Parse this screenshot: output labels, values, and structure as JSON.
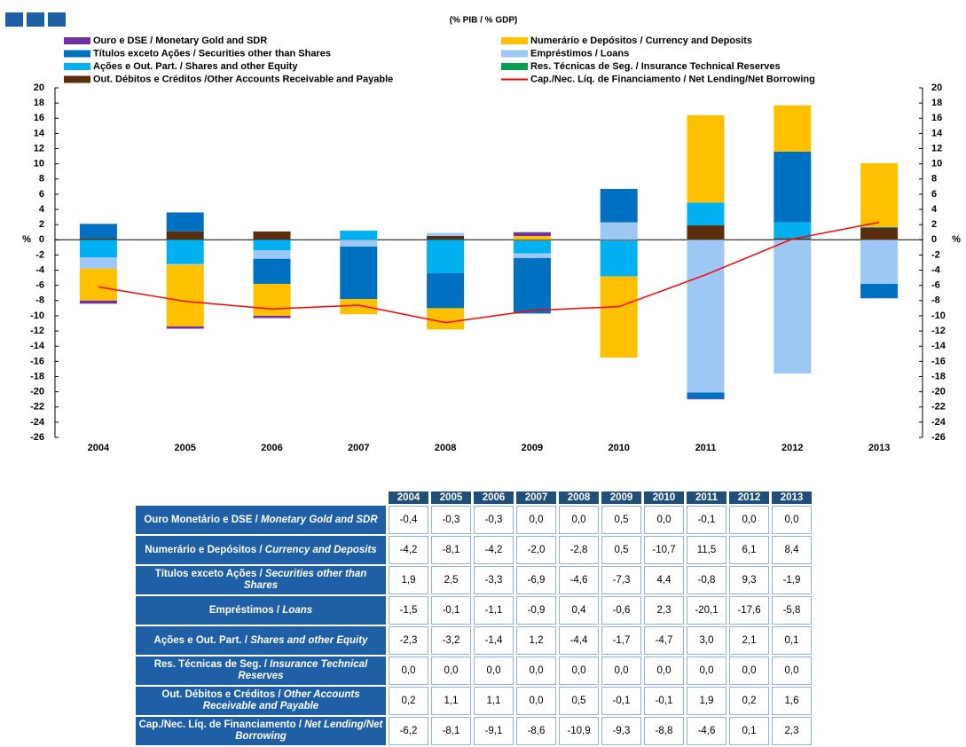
{
  "chart_data": {
    "type": "bar",
    "subtitle": "(% PIB / % GDP)",
    "y_label": "%",
    "categories": [
      "2004",
      "2005",
      "2006",
      "2007",
      "2008",
      "2009",
      "2010",
      "2011",
      "2012",
      "2013"
    ],
    "ylim": [
      -26,
      20
    ],
    "yticks": [
      -26,
      -24,
      -22,
      -20,
      -18,
      -16,
      -14,
      -12,
      -10,
      -8,
      -6,
      -4,
      -2,
      0,
      2,
      4,
      6,
      8,
      10,
      12,
      14,
      16,
      18,
      20
    ],
    "stacked": true,
    "series": [
      {
        "name": "Ouro e DSE / Monetary Gold and SDR",
        "color": "#7030a0",
        "values": [
          -0.4,
          -0.3,
          -0.3,
          0.0,
          0.0,
          0.5,
          0.0,
          -0.1,
          0.0,
          0.0
        ]
      },
      {
        "name": "Numerário e Depósitos / Currency and Deposits",
        "color": "#ffc000",
        "values": [
          -4.2,
          -8.1,
          -4.2,
          -2.0,
          -2.8,
          0.5,
          -10.7,
          11.5,
          6.1,
          8.4
        ]
      },
      {
        "name": "Títulos exceto Ações / Securities other than Shares",
        "color": "#0070c0",
        "values": [
          1.9,
          2.5,
          -3.3,
          -6.9,
          -4.6,
          -7.3,
          4.4,
          -0.8,
          9.3,
          -1.9
        ]
      },
      {
        "name": "Empréstimos / Loans",
        "color": "#9dc8f5",
        "values": [
          -1.5,
          -0.1,
          -1.1,
          -0.9,
          0.4,
          -0.6,
          2.3,
          -20.1,
          -17.6,
          -5.8
        ]
      },
      {
        "name": "Ações e Out. Part. / Shares and other Equity",
        "color": "#00b0f0",
        "values": [
          -2.3,
          -3.2,
          -1.4,
          1.2,
          -4.4,
          -1.7,
          -4.7,
          3.0,
          2.1,
          0.1
        ]
      },
      {
        "name": "Res. Técnicas de Seg. / Insurance Technical Reserves",
        "color": "#00a050",
        "values": [
          0.0,
          0.0,
          0.0,
          0.0,
          0.0,
          0.0,
          0.0,
          0.0,
          0.0,
          0.0
        ]
      },
      {
        "name": "Out. Débitos e Créditos /Other Accounts Receivable and Payable",
        "color": "#5a2d0c",
        "values": [
          0.2,
          1.1,
          1.1,
          0.0,
          0.5,
          -0.1,
          -0.1,
          1.9,
          0.2,
          1.6
        ]
      },
      {
        "name": "Cap./Nec. Líq. de Financiamento / Net Lending/Net Borrowing",
        "type": "line",
        "color": "#ff0000",
        "values": [
          -6.2,
          -8.1,
          -9.1,
          -8.6,
          -10.9,
          -9.3,
          -8.8,
          -4.6,
          0.1,
          2.3
        ]
      }
    ]
  },
  "table": {
    "header": [
      "2004",
      "2005",
      "2006",
      "2007",
      "2008",
      "2009",
      "2010",
      "2011",
      "2012",
      "2013"
    ],
    "rows": [
      {
        "label": "Ouro Monetário e DSE /",
        "label_en": "Monetary Gold and SDR",
        "cells": [
          "-0,4",
          "-0,3",
          "-0,3",
          "0,0",
          "0,0",
          "0,5",
          "0,0",
          "-0,1",
          "0,0",
          "0,0"
        ]
      },
      {
        "label": "Numerário e Depósitos /",
        "label_en": "Currency and Deposits",
        "cells": [
          "-4,2",
          "-8,1",
          "-4,2",
          "-2,0",
          "-2,8",
          "0,5",
          "-10,7",
          "11,5",
          "6,1",
          "8,4"
        ]
      },
      {
        "label": "Títulos exceto Ações /",
        "label_en": "Securities other than Shares",
        "cells": [
          "1,9",
          "2,5",
          "-3,3",
          "-6,9",
          "-4,6",
          "-7,3",
          "4,4",
          "-0,8",
          "9,3",
          "-1,9"
        ]
      },
      {
        "label": "Empréstimos /",
        "label_en": "Loans",
        "cells": [
          "-1,5",
          "-0,1",
          "-1,1",
          "-0,9",
          "0,4",
          "-0,6",
          "2,3",
          "-20,1",
          "-17,6",
          "-5,8"
        ]
      },
      {
        "label": "Ações e Out. Part. /",
        "label_en": "Shares and other Equity",
        "cells": [
          "-2,3",
          "-3,2",
          "-1,4",
          "1,2",
          "-4,4",
          "-1,7",
          "-4,7",
          "3,0",
          "2,1",
          "0,1"
        ]
      },
      {
        "label": "Res. Técnicas de Seg. /",
        "label_en": "Insurance Technical Reserves",
        "cells": [
          "0,0",
          "0,0",
          "0,0",
          "0,0",
          "0,0",
          "0,0",
          "0,0",
          "0,0",
          "0,0",
          "0,0"
        ]
      },
      {
        "label": "Out. Débitos e Créditos /",
        "label_en": "Other Accounts Receivable and Payable",
        "cells": [
          "0,2",
          "1,1",
          "1,1",
          "0,0",
          "0,5",
          "-0,1",
          "-0,1",
          "1,9",
          "0,2",
          "1,6"
        ]
      },
      {
        "label": "Cap./Nec. Líq. de Financiamento /",
        "label_en": "Net Lending/Net Borrowing",
        "cells": [
          "-6,2",
          "-8,1",
          "-9,1",
          "-8,6",
          "-10,9",
          "-9,3",
          "-8,8",
          "-4,6",
          "0,1",
          "2,3"
        ]
      }
    ]
  }
}
